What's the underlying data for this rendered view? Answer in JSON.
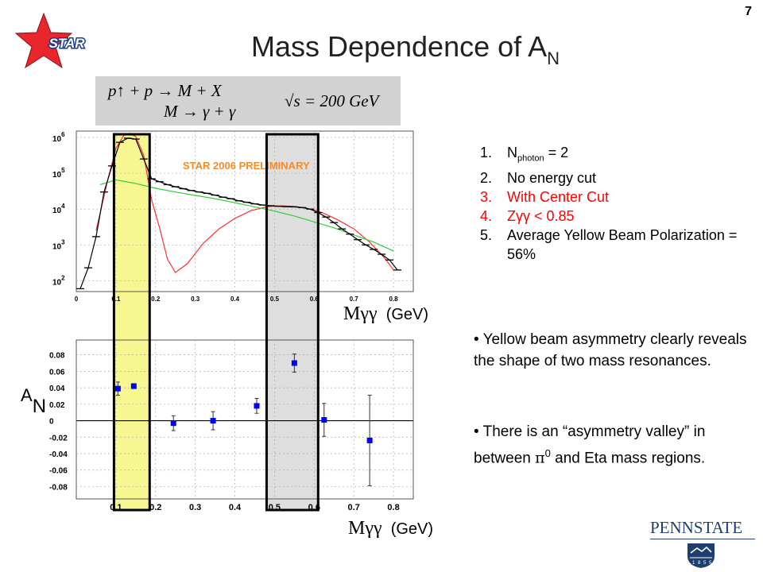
{
  "page": {
    "title": "Mass Dependence of A",
    "title_subscript": "N",
    "page_number": "7"
  },
  "logos": {
    "star_text": "STAR",
    "star_color": "#e8262b",
    "pennstate_text": "PENNSTATE",
    "pennstate_year_digits": [
      "1",
      "8",
      "5",
      "5"
    ],
    "pennstate_color": "#1e3f6e"
  },
  "formula": {
    "line1": "p↑ + p → M + X",
    "line2": "M → γ + γ",
    "energy": "√s = 200 GeV"
  },
  "info_list": [
    {
      "num": "1.",
      "text": "N",
      "sub": "photon",
      "after": " = 2",
      "color": "black"
    },
    {
      "num": "2.",
      "text": "No energy cut",
      "color": "black"
    },
    {
      "num": "3.",
      "text": "With Center Cut",
      "color": "red"
    },
    {
      "num": "4.",
      "text": "Zγγ < 0.85",
      "color": "red"
    },
    {
      "num": "5.",
      "text": "Average Yellow Beam Polarization = 56%",
      "color": "black"
    }
  ],
  "bullets": [
    "• Yellow beam asymmetry clearly reveals the shape of two mass resonances.",
    "• There is an “asymmetry valley” in between π0 and Eta mass regions."
  ],
  "bullet2_parts": {
    "pre": "• There is an “asymmetry valley” in between ",
    "pi": "π",
    "sup": "0",
    "post": " and Eta mass regions."
  },
  "colors": {
    "yellow_band": "#f7f791",
    "gray_band": "#dedede",
    "red_fit": "#ff3030",
    "green_fit": "#33cc33",
    "marker_blue": "#0000ff",
    "prelim_text": "#f28c28",
    "frame": "#555555"
  },
  "chart_data": [
    {
      "type": "scatter",
      "label": "STAR 2006 PRELIMINARY",
      "xlabel_var": "Mγγ",
      "xlabel_unit": "(GeV)",
      "log_y": true,
      "xlim": [
        0,
        0.85
      ],
      "ylim": [
        50,
        1500000
      ],
      "grid": true,
      "x_ticks": [
        "0",
        "0.1",
        "0.2",
        "0.3",
        "0.4",
        "0.5",
        "0.6",
        "0.7",
        "0.8"
      ],
      "y_ticks": [
        {
          "value": 100,
          "base": "10",
          "exp": "2"
        },
        {
          "value": 1000,
          "base": "10",
          "exp": "3"
        },
        {
          "value": 10000,
          "base": "10",
          "exp": "4"
        },
        {
          "value": 100000,
          "base": "10",
          "exp": "5"
        },
        {
          "value": 1000000,
          "base": "10",
          "exp": "6"
        }
      ],
      "data_x": [
        0.01,
        0.03,
        0.05,
        0.07,
        0.09,
        0.11,
        0.13,
        0.15,
        0.17,
        0.19,
        0.21,
        0.23,
        0.25,
        0.27,
        0.29,
        0.31,
        0.33,
        0.35,
        0.37,
        0.39,
        0.41,
        0.43,
        0.45,
        0.47,
        0.49,
        0.51,
        0.53,
        0.55,
        0.57,
        0.59,
        0.61,
        0.63,
        0.65,
        0.67,
        0.69,
        0.71,
        0.73,
        0.75,
        0.77,
        0.79,
        0.81
      ],
      "data_y": [
        60,
        230,
        1700,
        30000,
        160000,
        730000,
        950000,
        900000,
        250000,
        70000,
        58000,
        48000,
        42000,
        37000,
        33000,
        30000,
        27500,
        24500,
        21500,
        19500,
        17000,
        15500,
        14000,
        13000,
        12400,
        12000,
        11700,
        11500,
        11000,
        10000,
        8000,
        6000,
        4200,
        2800,
        2000,
        1400,
        1000,
        750,
        550,
        380,
        200
      ],
      "series": [
        {
          "name": "",
          "x": [
            0.05,
            0.08,
            0.1,
            0.12,
            0.135,
            0.15,
            0.17,
            0.19,
            0.21,
            0.23,
            0.25,
            0.28,
            0.32,
            0.36,
            0.4,
            0.44,
            0.48,
            0.5,
            0.52,
            0.55,
            0.58,
            0.62,
            0.66,
            0.7,
            0.74,
            0.78,
            0.8
          ],
          "y": [
            2500,
            70000,
            500000,
            1150000,
            1300000,
            1050000,
            320000,
            18000,
            3000,
            400,
            170,
            300,
            1100,
            2800,
            5500,
            9000,
            11500,
            12200,
            12300,
            11800,
            10600,
            8000,
            5000,
            2800,
            1200,
            400,
            200
          ],
          "color": "red"
        },
        {
          "name": "",
          "x": [
            0.06,
            0.1,
            0.15,
            0.2,
            0.25,
            0.3,
            0.35,
            0.4,
            0.45,
            0.5,
            0.55,
            0.6,
            0.65,
            0.7,
            0.75,
            0.8
          ],
          "y": [
            48000,
            65000,
            52000,
            38000,
            30000,
            24000,
            19500,
            15000,
            11500,
            8800,
            6400,
            4400,
            3000,
            1900,
            1200,
            680
          ],
          "color": "green"
        }
      ]
    },
    {
      "type": "scatter",
      "ylabel": "A",
      "ylabel_subscript": "N",
      "xlabel_var": "Mγγ",
      "xlabel_unit": "(GeV)",
      "xlim": [
        0,
        0.85
      ],
      "ylim": [
        -0.095,
        0.098
      ],
      "grid": true,
      "x_ticks": [
        "0.1",
        "0.2",
        "0.3",
        "0.4",
        "0.5",
        "0.6",
        "0.7",
        "0.8"
      ],
      "y_ticks": [
        "0.08",
        "0.06",
        "0.04",
        "0.02",
        "0",
        "-0.02",
        "-0.04",
        "-0.06",
        "-0.08"
      ],
      "y_tick_values": [
        0.08,
        0.06,
        0.04,
        0.02,
        0,
        -0.02,
        -0.04,
        -0.06,
        -0.08
      ],
      "x": [
        0.105,
        0.145,
        0.245,
        0.345,
        0.455,
        0.55,
        0.625,
        0.74
      ],
      "y": [
        0.039,
        0.042,
        -0.003,
        0.0,
        0.018,
        0.07,
        0.001,
        -0.024
      ],
      "yerr": [
        0.008,
        0.003,
        0.009,
        0.011,
        0.009,
        0.011,
        0.02,
        0.055
      ]
    }
  ],
  "bands": [
    {
      "name": "pi0-band",
      "x_range": [
        0.095,
        0.185
      ]
    },
    {
      "name": "eta-band",
      "x_range": [
        0.48,
        0.61
      ]
    }
  ]
}
